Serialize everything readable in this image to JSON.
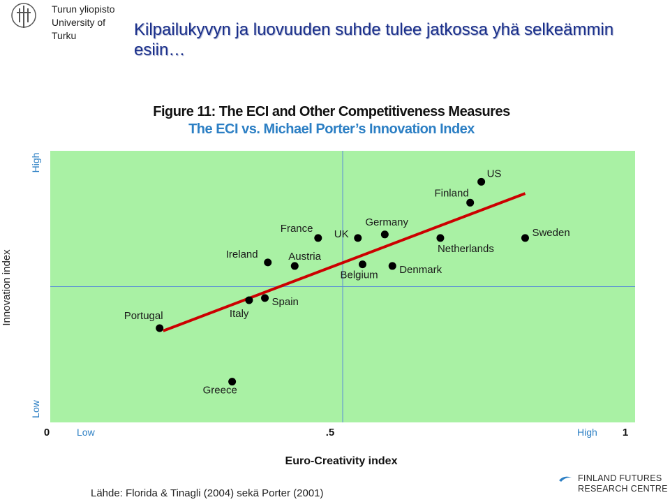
{
  "header": {
    "logo_line1": "Turun yliopisto",
    "logo_line2": "University of Turku",
    "title": "Kilpailukyvyn ja luovuuden suhde tulee jatkossa yhä selkeämmin esiin…"
  },
  "figure": {
    "title": "Figure 11: The ECI and Other Competitiveness Measures",
    "subtitle": "The ECI vs. Michael Porter’s Innovation Index"
  },
  "chart_data": {
    "type": "scatter",
    "xlabel": "Euro-Creativity index",
    "ylabel": "Innovation index",
    "xlim": [
      0,
      1
    ],
    "ylim": [
      0,
      1
    ],
    "x_ticks": [
      {
        "value": 0,
        "label": "0"
      },
      {
        "value": 0.5,
        "label": ".5"
      },
      {
        "value": 1,
        "label": "1"
      }
    ],
    "x_low_label": "Low",
    "x_high_label": "High",
    "y_low_label": "Low",
    "y_high_label": "High",
    "midlines": {
      "x": 0.5,
      "y": 0.5
    },
    "background_color": "#a9f1a4",
    "point_color": "#000000",
    "trend_color": "#cc0000",
    "axis_label_color": "#2c7fc4",
    "points": [
      {
        "name": "US",
        "x": 0.737,
        "y": 0.886
      },
      {
        "name": "Finland",
        "x": 0.718,
        "y": 0.809
      },
      {
        "name": "Sweden",
        "x": 0.812,
        "y": 0.679
      },
      {
        "name": "Netherlands",
        "x": 0.667,
        "y": 0.679
      },
      {
        "name": "Germany",
        "x": 0.572,
        "y": 0.692
      },
      {
        "name": "UK",
        "x": 0.526,
        "y": 0.679
      },
      {
        "name": "France",
        "x": 0.458,
        "y": 0.679
      },
      {
        "name": "Denmark",
        "x": 0.585,
        "y": 0.576
      },
      {
        "name": "Belgium",
        "x": 0.534,
        "y": 0.582
      },
      {
        "name": "Austria",
        "x": 0.418,
        "y": 0.576
      },
      {
        "name": "Ireland",
        "x": 0.372,
        "y": 0.589
      },
      {
        "name": "Spain",
        "x": 0.367,
        "y": 0.458
      },
      {
        "name": "Italy",
        "x": 0.34,
        "y": 0.45
      },
      {
        "name": "Portugal",
        "x": 0.187,
        "y": 0.347
      },
      {
        "name": "Greece",
        "x": 0.311,
        "y": 0.15
      }
    ],
    "trendline": {
      "x": [
        0.193,
        0.812
      ],
      "y": [
        0.337,
        0.843
      ]
    }
  },
  "footer": {
    "source": "Lähde: Florida & Tinagli (2004) sekä Porter (2001)",
    "org_line1": "FINLAND FUTURES",
    "org_line2": "RESEARCH CENTRE"
  }
}
